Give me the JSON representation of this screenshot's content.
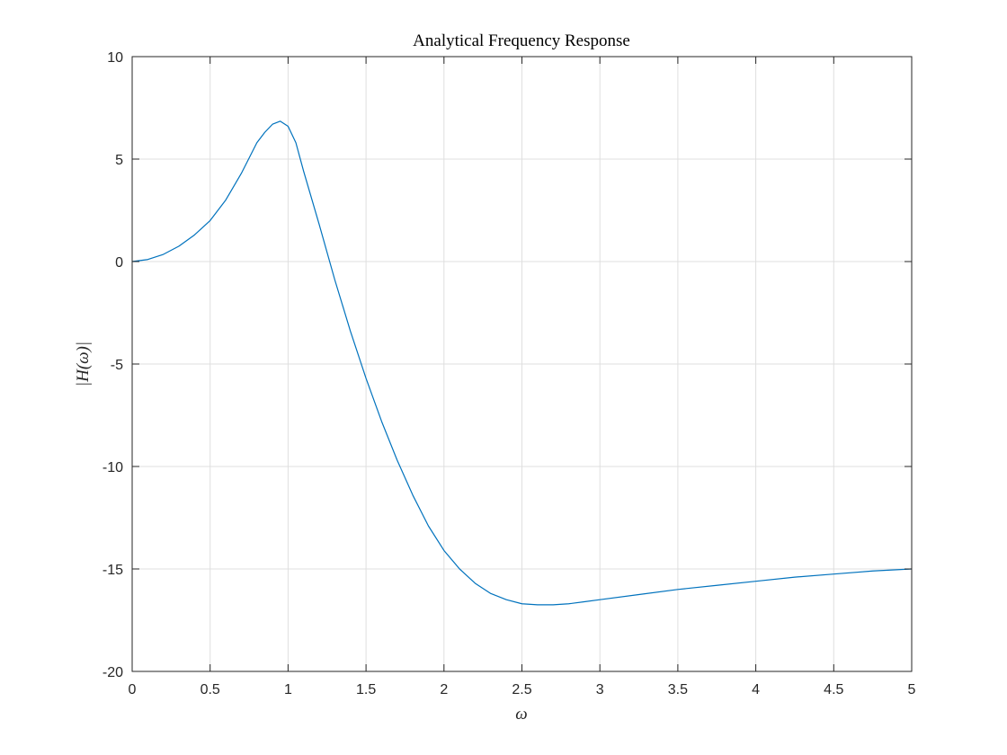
{
  "chart_data": {
    "type": "line",
    "title": "Analytical Frequency Response",
    "xlabel": "ω",
    "ylabel": "|H(ω)|",
    "xlim": [
      0,
      5
    ],
    "ylim": [
      -20,
      10
    ],
    "xticks": [
      0,
      0.5,
      1,
      1.5,
      2,
      2.5,
      3,
      3.5,
      4,
      4.5,
      5
    ],
    "xtick_labels": [
      "0",
      "0.5",
      "1",
      "1.5",
      "2",
      "2.5",
      "3",
      "3.5",
      "4",
      "4.5",
      "5"
    ],
    "yticks": [
      -20,
      -15,
      -10,
      -5,
      0,
      5,
      10
    ],
    "ytick_labels": [
      "-20",
      "-15",
      "-10",
      "-5",
      "0",
      "5",
      "10"
    ],
    "grid": true,
    "line_color": "#0072BD",
    "series": [
      {
        "x": [
          0,
          0.1,
          0.2,
          0.3,
          0.4,
          0.5,
          0.6,
          0.7,
          0.8,
          0.85,
          0.9,
          0.95,
          1.0,
          1.05,
          1.1,
          1.2,
          1.3,
          1.4,
          1.5,
          1.6,
          1.7,
          1.8,
          1.9,
          2.0,
          2.1,
          2.2,
          2.3,
          2.4,
          2.5,
          2.6,
          2.7,
          2.8,
          2.9,
          3.0,
          3.25,
          3.5,
          3.75,
          4.0,
          4.25,
          4.5,
          4.75,
          5.0
        ],
        "y": [
          0,
          0.1,
          0.35,
          0.75,
          1.3,
          2.0,
          3.0,
          4.3,
          5.8,
          6.3,
          6.7,
          6.85,
          6.6,
          5.8,
          4.4,
          1.8,
          -0.9,
          -3.4,
          -5.7,
          -7.8,
          -9.7,
          -11.4,
          -12.9,
          -14.1,
          -15.0,
          -15.7,
          -16.2,
          -16.5,
          -16.7,
          -16.75,
          -16.75,
          -16.7,
          -16.6,
          -16.5,
          -16.25,
          -16.0,
          -15.8,
          -15.6,
          -15.4,
          -15.25,
          -15.1,
          -15.0
        ]
      }
    ]
  }
}
